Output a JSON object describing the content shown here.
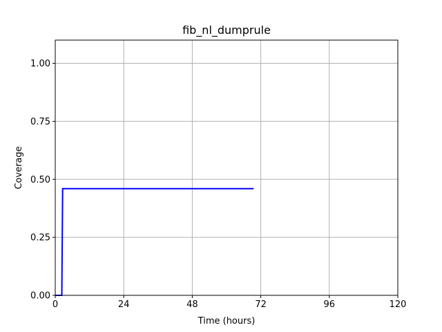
{
  "chart_data": {
    "type": "line",
    "title": "fib_nl_dumprule",
    "xlabel": "Time (hours)",
    "ylabel": "Coverage",
    "xlim": [
      0,
      120
    ],
    "ylim": [
      0,
      1.1
    ],
    "xticks": [
      0,
      24,
      48,
      72,
      96,
      120
    ],
    "xtick_labels": [
      "0",
      "24",
      "48",
      "72",
      "96",
      "120"
    ],
    "yticks": [
      0,
      0.25,
      0.5,
      0.75,
      1.0
    ],
    "ytick_labels": [
      "0.00",
      "0.25",
      "0.50",
      "0.75",
      "1.00"
    ],
    "grid": true,
    "series": [
      {
        "color": "#0000ff",
        "x": [
          0,
          2.3,
          2.6,
          69.5
        ],
        "y": [
          0,
          0,
          0.46,
          0.46
        ]
      }
    ]
  }
}
